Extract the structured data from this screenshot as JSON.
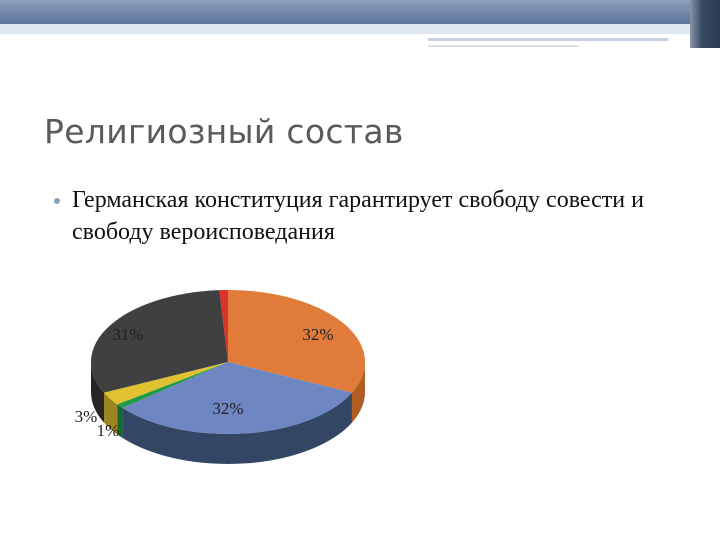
{
  "slide": {
    "title": "Религиозный состав",
    "bullet": "Германская конституция гарантирует свободу совести и свободу вероисповедания"
  },
  "chart_data": {
    "type": "pie",
    "style": "3d",
    "legend": "none",
    "slices": [
      {
        "value": 32,
        "label": "32%",
        "color": "#e07b39",
        "side_color": "#b15c22"
      },
      {
        "value": 32,
        "label": "32%",
        "color": "#6e87c2",
        "side_color": "#334765"
      },
      {
        "value": 1,
        "label": "1%",
        "color": "#1f9c45",
        "side_color": "#146a2e"
      },
      {
        "value": 3,
        "label": "3%",
        "color": "#e2c233",
        "side_color": "#9c8520"
      },
      {
        "value": 31,
        "label": "31%",
        "color": "#404040",
        "side_color": "#262626"
      },
      {
        "value": 1,
        "label": "",
        "color": "#d9322a",
        "side_color": "#9e1f19"
      }
    ]
  }
}
